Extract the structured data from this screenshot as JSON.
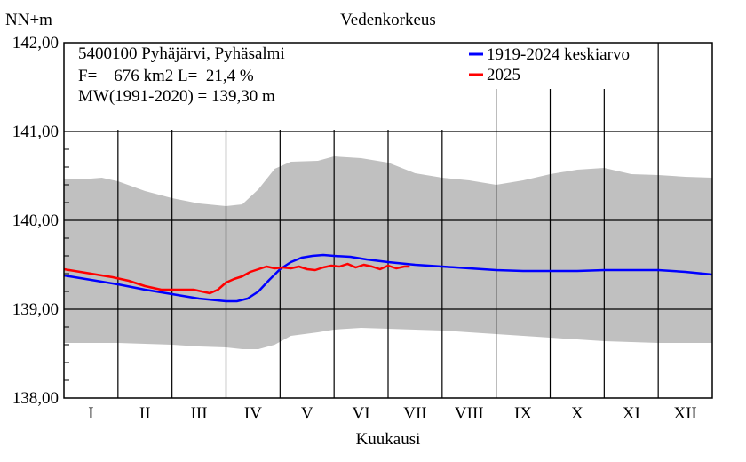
{
  "chart_data": {
    "type": "area",
    "title": "Vedenkorkeus",
    "ylabel": "NN+m",
    "xlabel": "Kuukausi",
    "ylim": [
      138.0,
      142.0
    ],
    "y_ticks": [
      "138,00",
      "139,00",
      "140,00",
      "141,00",
      "142,00"
    ],
    "x_month_ticks": [
      "I",
      "II",
      "III",
      "IV",
      "V",
      "VI",
      "VII",
      "VIII",
      "IX",
      "X",
      "XI",
      "XII"
    ],
    "info_lines": [
      "5400100 Pyhäjärvi, Pyhäsalmi",
      "F=    676 km2 L=  21,4 %",
      "MW(1991-2020) = 139,30 m"
    ],
    "legend": [
      {
        "label": "1919-2024 keskiarvo",
        "color": "#0000ff"
      },
      {
        "label": "2025",
        "color": "#ff0000"
      }
    ],
    "range_band": {
      "color": "#c0c0c0",
      "x_month": [
        0.0,
        0.3,
        0.7,
        1.0,
        1.5,
        2.0,
        2.5,
        3.0,
        3.3,
        3.6,
        3.9,
        4.2,
        4.7,
        5.0,
        5.5,
        6.0,
        6.5,
        7.0,
        7.5,
        8.0,
        8.5,
        9.0,
        9.5,
        10.0,
        10.5,
        11.0,
        11.5,
        12.0
      ],
      "max": [
        140.46,
        140.46,
        140.48,
        140.44,
        140.33,
        140.25,
        140.19,
        140.16,
        140.18,
        140.35,
        140.58,
        140.66,
        140.67,
        140.72,
        140.7,
        140.65,
        140.53,
        140.48,
        140.45,
        140.4,
        140.45,
        140.52,
        140.57,
        140.59,
        140.52,
        140.51,
        140.49,
        140.48
      ],
      "min": [
        138.62,
        138.62,
        138.62,
        138.62,
        138.61,
        138.6,
        138.58,
        138.57,
        138.55,
        138.55,
        138.6,
        138.7,
        138.74,
        138.77,
        138.79,
        138.78,
        138.77,
        138.76,
        138.74,
        138.72,
        138.7,
        138.68,
        138.66,
        138.64,
        138.63,
        138.62,
        138.62,
        138.62
      ]
    },
    "series": [
      {
        "name": "1919-2024 keskiarvo",
        "color": "#0000ff",
        "x_month": [
          0.0,
          0.5,
          1.0,
          1.5,
          2.0,
          2.5,
          3.0,
          3.2,
          3.4,
          3.6,
          3.8,
          4.0,
          4.2,
          4.4,
          4.6,
          4.8,
          5.0,
          5.3,
          5.6,
          6.0,
          6.5,
          7.0,
          7.5,
          8.0,
          8.5,
          9.0,
          9.5,
          10.0,
          10.5,
          11.0,
          11.5,
          12.0
        ],
        "values": [
          139.38,
          139.33,
          139.28,
          139.22,
          139.17,
          139.12,
          139.09,
          139.09,
          139.12,
          139.2,
          139.33,
          139.45,
          139.53,
          139.58,
          139.6,
          139.61,
          139.6,
          139.59,
          139.56,
          139.53,
          139.5,
          139.48,
          139.46,
          139.44,
          139.43,
          139.43,
          139.43,
          139.44,
          139.44,
          139.44,
          139.42,
          139.39
        ]
      },
      {
        "name": "2025",
        "color": "#ff0000",
        "x_month": [
          0.0,
          0.3,
          0.6,
          0.9,
          1.2,
          1.5,
          1.8,
          2.1,
          2.4,
          2.55,
          2.7,
          2.85,
          3.0,
          3.15,
          3.3,
          3.45,
          3.6,
          3.75,
          3.9,
          4.05,
          4.2,
          4.35,
          4.5,
          4.65,
          4.8,
          4.95,
          5.1,
          5.25,
          5.4,
          5.55,
          5.7,
          5.85,
          6.0,
          6.15,
          6.3,
          6.4
        ],
        "values": [
          139.45,
          139.42,
          139.39,
          139.36,
          139.32,
          139.26,
          139.22,
          139.22,
          139.22,
          139.2,
          139.18,
          139.22,
          139.3,
          139.34,
          139.37,
          139.42,
          139.45,
          139.48,
          139.46,
          139.47,
          139.46,
          139.48,
          139.45,
          139.44,
          139.47,
          139.49,
          139.48,
          139.51,
          139.47,
          139.5,
          139.48,
          139.45,
          139.49,
          139.46,
          139.48,
          139.48
        ]
      }
    ]
  }
}
